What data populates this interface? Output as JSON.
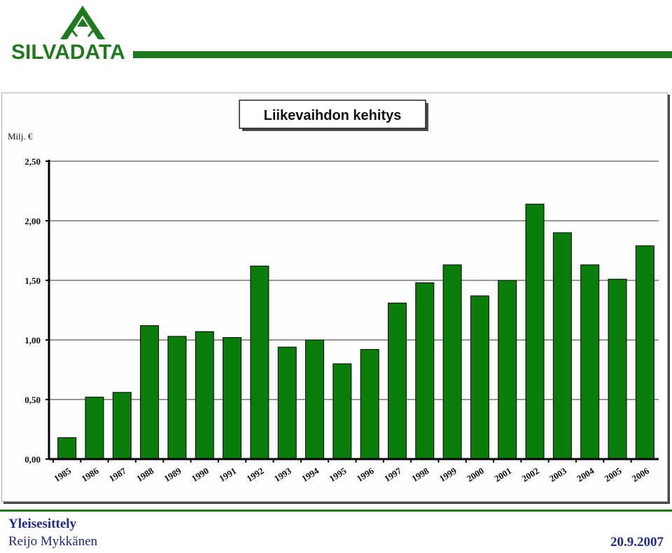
{
  "logo": {
    "text": "SILVADATA",
    "color": "#1f7a1f"
  },
  "footer": {
    "title": "Yleisesittely",
    "author": "Reijo Mykkänen",
    "date": "20.9.2007",
    "text_color": "#1f2a8a",
    "line_color": "#1f7a1f"
  },
  "chart_data": {
    "type": "bar",
    "title": "Liikevaihdon kehitys",
    "ylabel": "Milj. €",
    "xlabel": "",
    "ylim": [
      0,
      2.5
    ],
    "yticks": [
      "0,00",
      "0,50",
      "1,00",
      "1,50",
      "2,00",
      "2,50"
    ],
    "grid": true,
    "bar_color": "#0a7d0a",
    "categories": [
      "1985",
      "1986",
      "1987",
      "1988",
      "1989",
      "1990",
      "1991",
      "1992",
      "1993",
      "1994",
      "1995",
      "1996",
      "1997",
      "1998",
      "1999",
      "2000",
      "2001",
      "2002",
      "2003",
      "2004",
      "2005",
      "2006"
    ],
    "values": [
      0.18,
      0.52,
      0.56,
      1.12,
      1.03,
      1.07,
      1.02,
      1.62,
      0.94,
      1.0,
      0.8,
      0.92,
      1.31,
      1.48,
      1.63,
      1.37,
      1.5,
      2.14,
      1.9,
      1.63,
      1.51,
      1.79
    ]
  }
}
